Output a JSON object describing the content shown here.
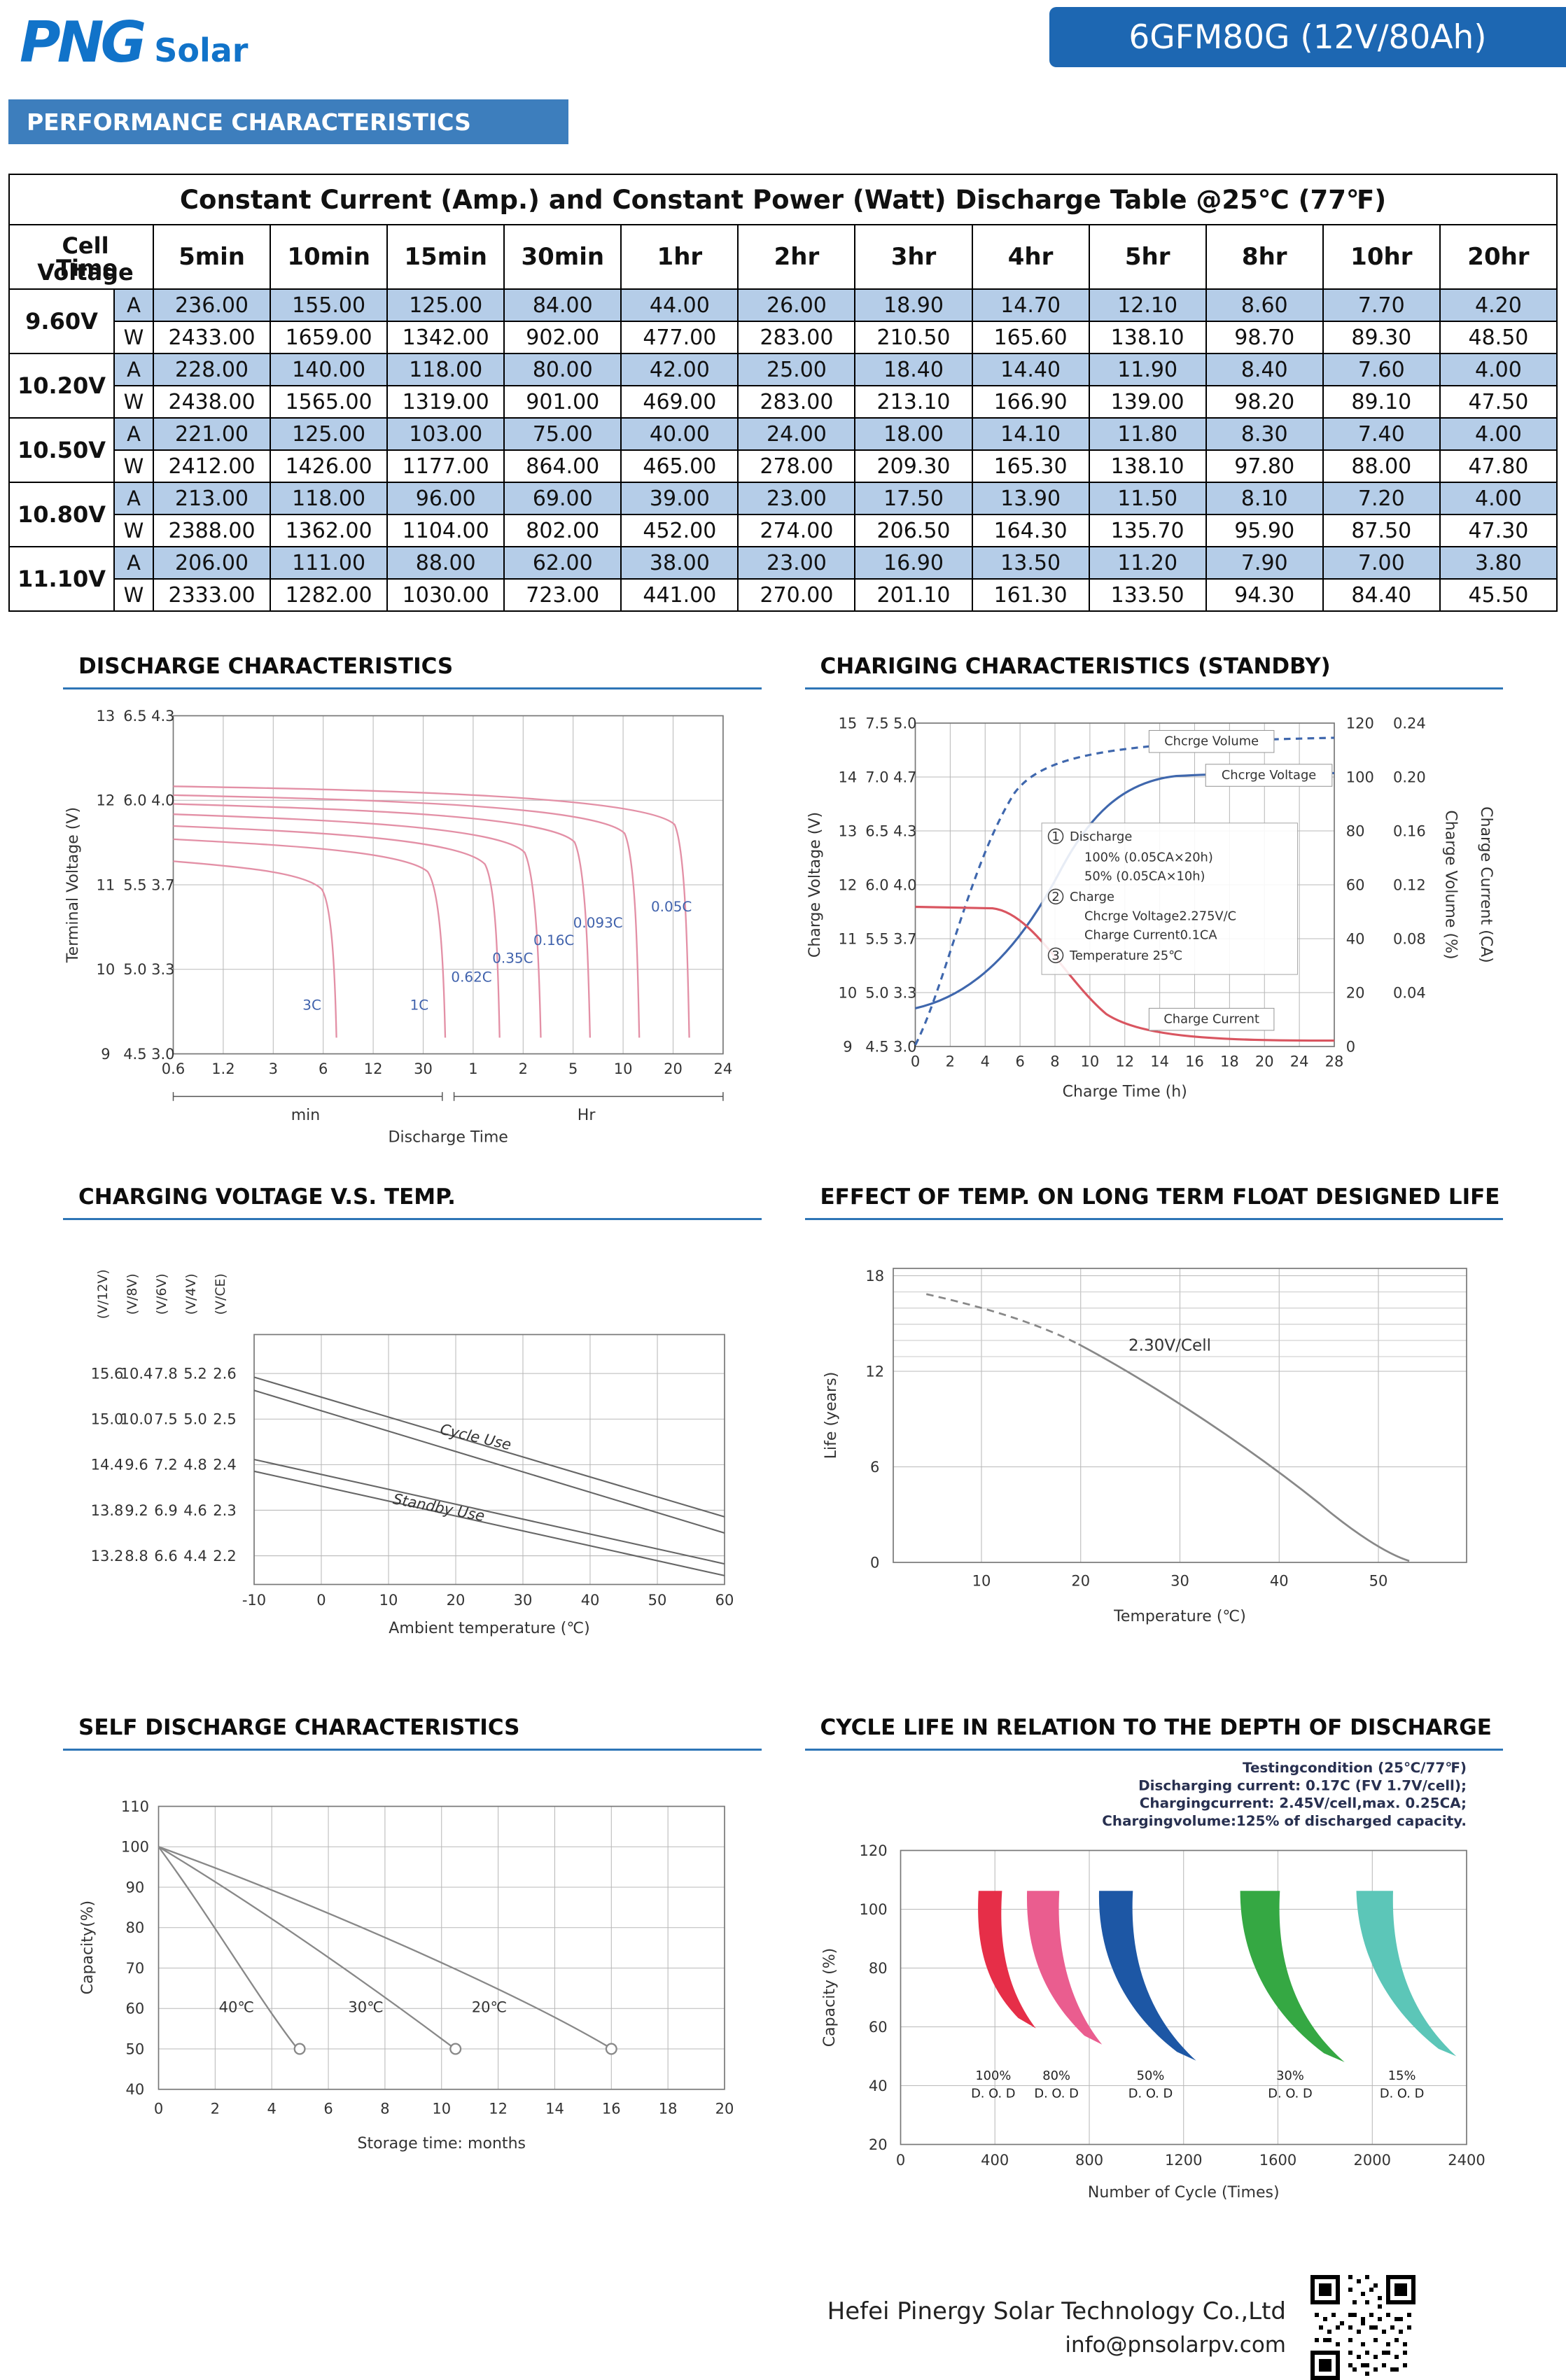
{
  "header": {
    "logo_main": "PNG",
    "logo_sub": "Solar",
    "model_badge": "6GFM80G (12V/80Ah)",
    "section_banner": "PERFORMANCE CHARACTERISTICS"
  },
  "colors": {
    "badge_blue": "#1d67b2",
    "banner_blue": "#3d7ebd",
    "table_row_blue": "#b5cde8",
    "panel_rule_blue": "#2e75b6",
    "curve_pink": "#e390a6",
    "curve_blue": "#3f67ad",
    "curve_red": "#d95560",
    "band_red": "#e62e48",
    "band_pink": "#ea5d8f",
    "band_blue": "#1d57a5",
    "band_green": "#35a843",
    "band_teal": "#5cc6b8"
  },
  "discharge_table": {
    "title": "Constant Current (Amp.) and Constant Power (Watt) Discharge Table @25℃ (77℉)",
    "corner_top": "Cell Voltage",
    "corner_bottom": "Time",
    "unit_a": "A",
    "unit_w": "W",
    "time_headers": [
      "5min",
      "10min",
      "15min",
      "30min",
      "1hr",
      "2hr",
      "3hr",
      "4hr",
      "5hr",
      "8hr",
      "10hr",
      "20hr"
    ],
    "groups": [
      {
        "v": "9.60V",
        "a": [
          "236.00",
          "155.00",
          "125.00",
          "84.00",
          "44.00",
          "26.00",
          "18.90",
          "14.70",
          "12.10",
          "8.60",
          "7.70",
          "4.20"
        ],
        "w": [
          "2433.00",
          "1659.00",
          "1342.00",
          "902.00",
          "477.00",
          "283.00",
          "210.50",
          "165.60",
          "138.10",
          "98.70",
          "89.30",
          "48.50"
        ]
      },
      {
        "v": "10.20V",
        "a": [
          "228.00",
          "140.00",
          "118.00",
          "80.00",
          "42.00",
          "25.00",
          "18.40",
          "14.40",
          "11.90",
          "8.40",
          "7.60",
          "4.00"
        ],
        "w": [
          "2438.00",
          "1565.00",
          "1319.00",
          "901.00",
          "469.00",
          "283.00",
          "213.10",
          "166.90",
          "139.00",
          "98.20",
          "89.10",
          "47.50"
        ]
      },
      {
        "v": "10.50V",
        "a": [
          "221.00",
          "125.00",
          "103.00",
          "75.00",
          "40.00",
          "24.00",
          "18.00",
          "14.10",
          "11.80",
          "8.30",
          "7.40",
          "4.00"
        ],
        "w": [
          "2412.00",
          "1426.00",
          "1177.00",
          "864.00",
          "465.00",
          "278.00",
          "209.30",
          "165.30",
          "138.10",
          "97.80",
          "88.00",
          "47.80"
        ]
      },
      {
        "v": "10.80V",
        "a": [
          "213.00",
          "118.00",
          "96.00",
          "69.00",
          "39.00",
          "23.00",
          "17.50",
          "13.90",
          "11.50",
          "8.10",
          "7.20",
          "4.00"
        ],
        "w": [
          "2388.00",
          "1362.00",
          "1104.00",
          "802.00",
          "452.00",
          "274.00",
          "206.50",
          "164.30",
          "135.70",
          "95.90",
          "87.50",
          "47.30"
        ]
      },
      {
        "v": "11.10V",
        "a": [
          "206.00",
          "111.00",
          "88.00",
          "62.00",
          "38.00",
          "23.00",
          "16.90",
          "13.50",
          "11.20",
          "7.90",
          "7.00",
          "3.80"
        ],
        "w": [
          "2333.00",
          "1282.00",
          "1030.00",
          "723.00",
          "441.00",
          "270.00",
          "201.10",
          "161.30",
          "133.50",
          "94.30",
          "84.40",
          "45.50"
        ]
      }
    ]
  },
  "charts": {
    "discharge": {
      "title": "DISCHARGE CHARACTERISTICS",
      "ylabel": "Terminal Voltage (V)",
      "y1": [
        "13",
        "12",
        "11",
        "10",
        "9"
      ],
      "y2": [
        "6.5",
        "6.0",
        "5.5",
        "5.0",
        "4.5"
      ],
      "y3": [
        "4.3",
        "4.0",
        "3.7",
        "3.3",
        "3.0"
      ],
      "x": [
        "0.6",
        "1.2",
        "3",
        "6",
        "12",
        "30",
        "1",
        "2",
        "5",
        "10",
        "20",
        "24"
      ],
      "unit_min": "min",
      "unit_hr": "Hr",
      "xlabel": "Discharge Time",
      "curves": [
        "3C",
        "1C",
        "0.62C",
        "0.35C",
        "0.16C",
        "0.093C",
        "0.05C"
      ]
    },
    "charging": {
      "title": "CHARIGING CHARACTERISTICS (STANDBY)",
      "ylabel": "Charge Voltage (V)",
      "y1": [
        "15",
        "14",
        "13",
        "12",
        "11",
        "10",
        "9"
      ],
      "y2": [
        "7.5",
        "7.0",
        "6.5",
        "6.0",
        "5.5",
        "5.0",
        "4.5"
      ],
      "y3": [
        "5.0",
        "4.7",
        "4.3",
        "4.0",
        "3.7",
        "3.3",
        "3.0"
      ],
      "right1": [
        "120",
        "100",
        "80",
        "60",
        "40",
        "20",
        "0"
      ],
      "right1_label": "Charge Volume (%)",
      "right2": [
        "0.24",
        "0.20",
        "0.16",
        "0.12",
        "0.08",
        "0.04"
      ],
      "right2_label": "Charge Current (CA)",
      "x": [
        "0",
        "2",
        "4",
        "6",
        "8",
        "10",
        "12",
        "14",
        "16",
        "18",
        "20",
        "24",
        "28"
      ],
      "xlabel": "Charge Time (h)",
      "series": [
        "Chcrge Volume",
        "Chcrge Voltage",
        "Charge Current"
      ],
      "notes": [
        {
          "num": "1",
          "text": "Discharge"
        },
        {
          "text": "100% (0.05CA×20h)"
        },
        {
          "text": "50% (0.05CA×10h)"
        },
        {
          "num": "2",
          "text": "Charge"
        },
        {
          "text": "Chcrge Voltage2.275V/C"
        },
        {
          "text": "Charge Current0.1CA"
        },
        {
          "num": "3",
          "text": "Temperature 25℃"
        }
      ]
    },
    "volt_temp": {
      "title": "CHARGING VOLTAGE V.S. TEMP.",
      "col_headers": [
        "(V/12V)",
        "(V/8V)",
        "(V/6V)",
        "(V/4V)",
        "(V/CE)"
      ],
      "cols": [
        [
          "15.6",
          "15.0",
          "14.4",
          "13.8",
          "13.2"
        ],
        [
          "10.4",
          "10.0",
          "9.6",
          "9.2",
          "8.8"
        ],
        [
          "7.8",
          "7.5",
          "7.2",
          "6.9",
          "6.6"
        ],
        [
          "5.2",
          "5.0",
          "4.8",
          "4.6",
          "4.4"
        ],
        [
          "2.6",
          "2.5",
          "2.4",
          "2.3",
          "2.2"
        ]
      ],
      "x": [
        "-10",
        "0",
        "10",
        "20",
        "30",
        "40",
        "50",
        "60"
      ],
      "xlabel": "Ambient temperature (℃)",
      "lines": [
        "Cycle Use",
        "Standby Use"
      ]
    },
    "float_life": {
      "title": "EFFECT OF TEMP. ON LONG TERM FLOAT DESIGNED LIFE",
      "y": [
        "18",
        "12",
        "6",
        "0"
      ],
      "ylabel": "Life (years)",
      "x": [
        "10",
        "20",
        "30",
        "40",
        "50"
      ],
      "xlabel": "Temperature (℃)",
      "annotation": "2.30V/Cell"
    },
    "self_discharge": {
      "title": "SELF DISCHARGE CHARACTERISTICS",
      "y": [
        "110",
        "100",
        "90",
        "80",
        "70",
        "60",
        "50",
        "40"
      ],
      "ylabel": "Capacity(%)",
      "x": [
        "0",
        "2",
        "4",
        "6",
        "8",
        "10",
        "12",
        "14",
        "16",
        "18",
        "20"
      ],
      "xlabel": "Storage time: months",
      "curves": [
        "40℃",
        "30℃",
        "20℃"
      ]
    },
    "cycle_life": {
      "title": "CYCLE LIFE IN RELATION TO THE DEPTH OF DISCHARGE",
      "notes": [
        "Testingcondition (25℃/77℉)",
        "Discharging current: 0.17C (FV 1.7V/cell);",
        "Chargingcurrent: 2.45V/cell,max. 0.25CA;",
        "Chargingvolume:125% of discharged capacity."
      ],
      "y": [
        "120",
        "100",
        "80",
        "60",
        "40",
        "20"
      ],
      "ylabel": "Capacity (%)",
      "x": [
        "0",
        "400",
        "800",
        "1200",
        "1600",
        "2000",
        "2400"
      ],
      "xlabel": "Number of Cycle (Times)",
      "bands": [
        {
          "pct": "100%",
          "dod": "D. O. D"
        },
        {
          "pct": "80%",
          "dod": "D. O. D"
        },
        {
          "pct": "50%",
          "dod": "D. O. D"
        },
        {
          "pct": "30%",
          "dod": "D. O. D"
        },
        {
          "pct": "15%",
          "dod": "D. O. D"
        }
      ]
    }
  },
  "footer": {
    "company": "Hefei Pinergy Solar Technology Co.,Ltd",
    "email": "info@pnsolarpv.com"
  }
}
